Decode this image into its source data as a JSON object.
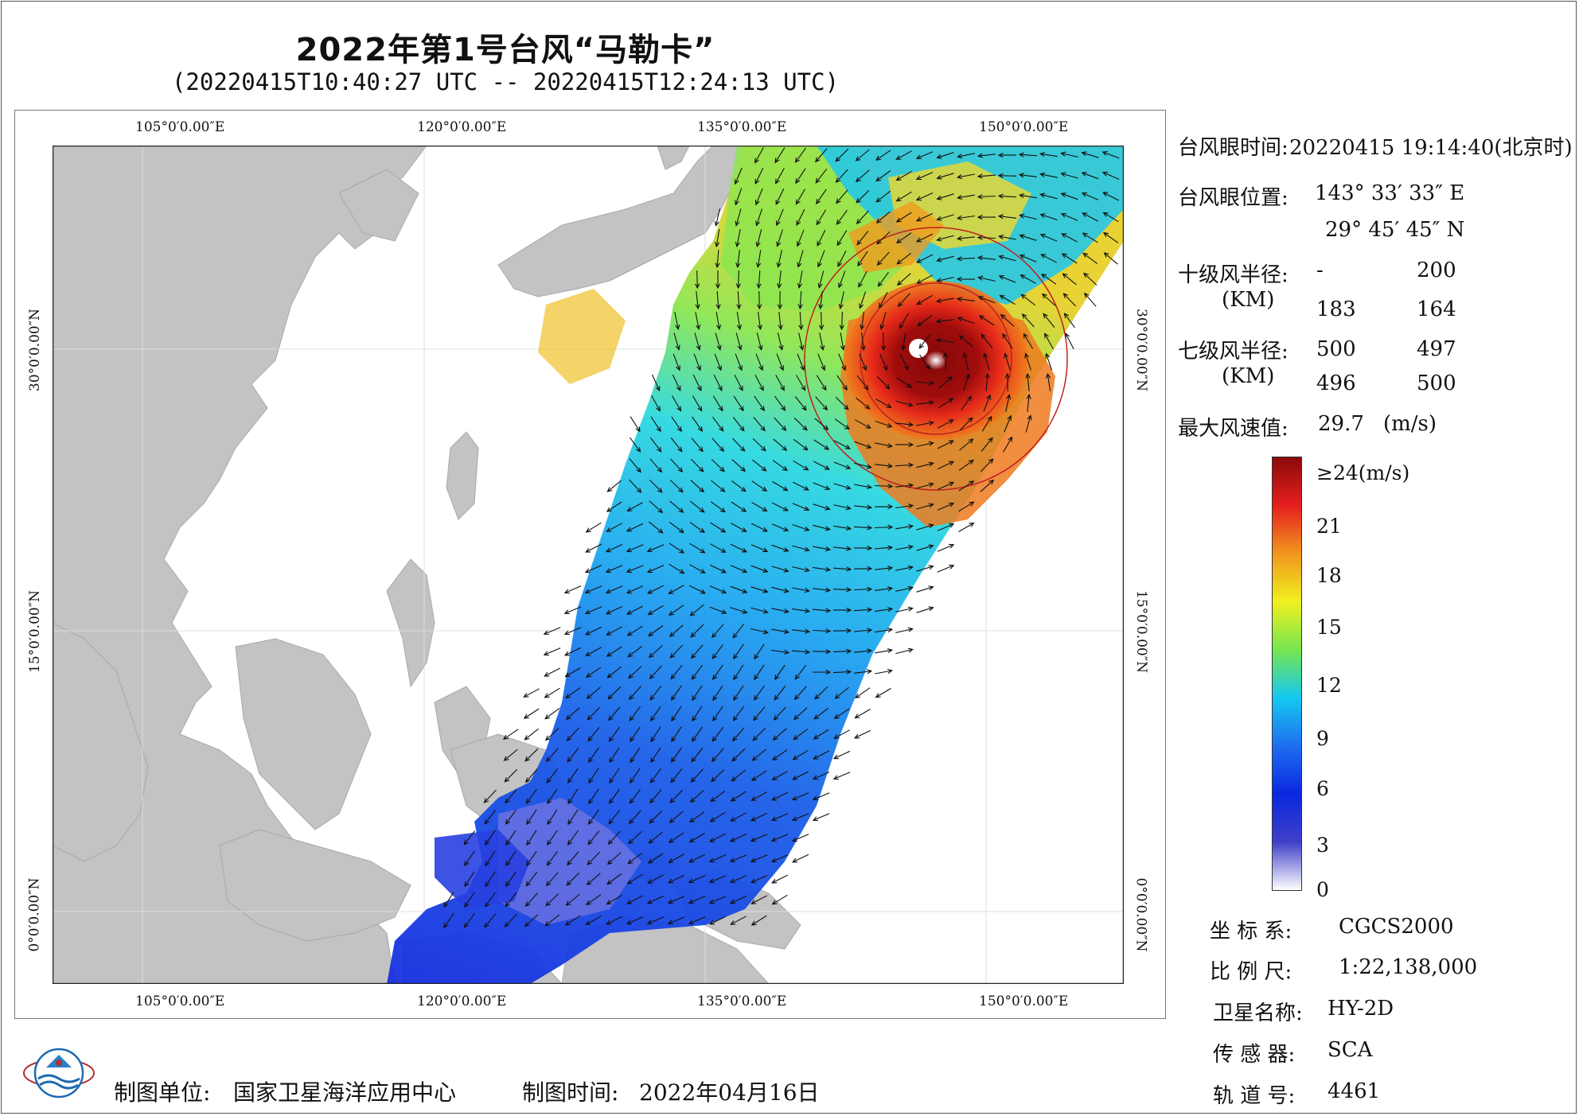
{
  "title": "2022年第1号台风“马勒卡”",
  "subtitle": "(20220415T10:40:27 UTC -- 20220415T12:24:13 UTC)",
  "map": {
    "top_lon_labels": [
      "105°0′0.00″E",
      "120°0′0.00″E",
      "135°0′0.00″E",
      "150°0′0.00″E"
    ],
    "bottom_lon_labels": [
      "105°0′0.00″E",
      "120°0′0.00″E",
      "135°0′0.00″E",
      "150°0′0.00″E"
    ],
    "left_lat_labels": [
      "30°0′0.00″N",
      "15°0′0.00″N",
      "0°0′0.00″N"
    ],
    "right_lat_labels": [
      "30°0′0.00″N",
      "15°0′0.00″N",
      "0°0′0.00″N"
    ],
    "land_color": "#c3c3c3",
    "ocean_color": "#ffffff"
  },
  "info": {
    "eye_time_label": "台风眼时间:",
    "eye_time_value": "20220415 19:14:40(北京时)",
    "eye_pos_label": "台风眼位置:",
    "eye_lon": "143° 33′ 33″ E",
    "eye_lat": "29° 45′ 45″ N",
    "r10_label": "十级风半径:",
    "r10_unit": "(KM)",
    "r10_vals": [
      "-",
      "200",
      "183",
      "164"
    ],
    "r7_label": "七级风半径:",
    "r7_unit": "(KM)",
    "r7_vals": [
      "500",
      "497",
      "496",
      "500"
    ],
    "max_label": "最大风速值:",
    "max_value": "29.7",
    "max_unit": "(m/s)"
  },
  "colorbar": {
    "labels": [
      "≥24(m/s)",
      "21",
      "18",
      "15",
      "12",
      "9",
      "6",
      "3",
      "0"
    ],
    "colors": [
      "#ffffff",
      "#4040c8",
      "#0a28e0",
      "#1e6ef0",
      "#14c8f0",
      "#78e650",
      "#f0f01e",
      "#f0961e",
      "#e61e1e",
      "#8c0a0a"
    ]
  },
  "meta": {
    "crs_label": "坐 标 系:",
    "crs_value": "CGCS2000",
    "scale_label": "比 例 尺:",
    "scale_value": "1:22,138,000",
    "sat_label": "卫星名称:",
    "sat_value": "HY-2D",
    "sensor_label": "传 感 器:",
    "sensor_value": "SCA",
    "orbit_label": "轨 道 号:",
    "orbit_value": "4461"
  },
  "footer": {
    "maker_label": "制图单位:",
    "maker_value": "国家卫星海洋应用中心",
    "date_label": "制图时间:",
    "date_value": "2022年04月16日"
  }
}
